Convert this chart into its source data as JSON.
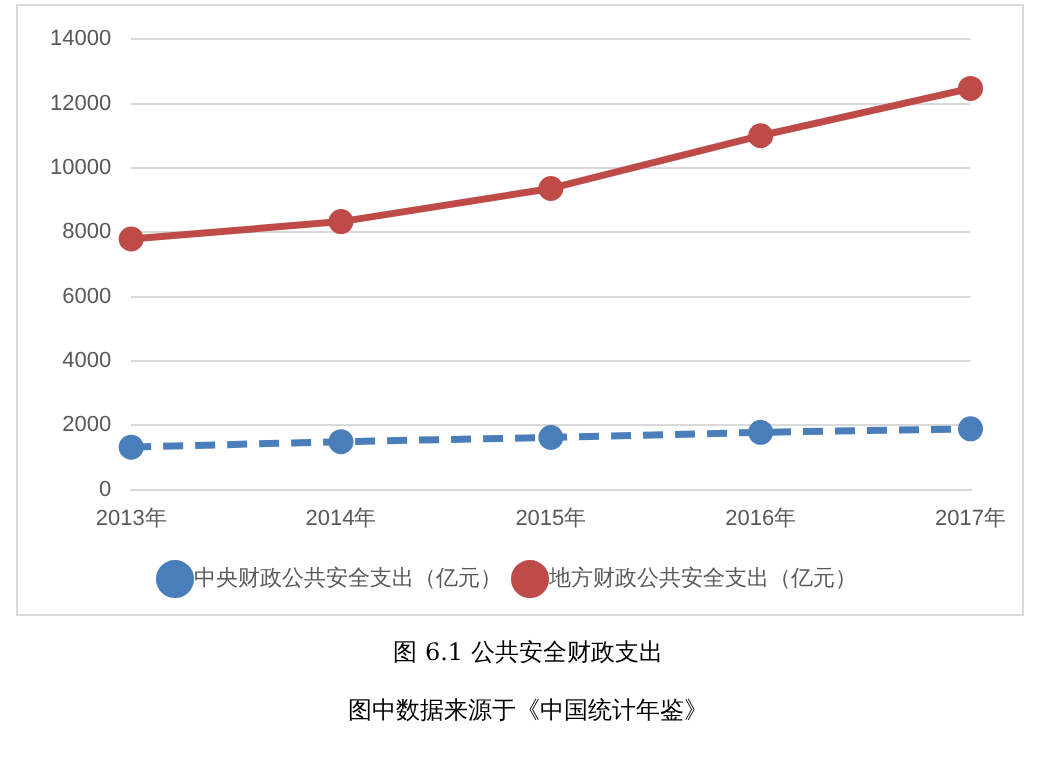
{
  "chart_data": {
    "type": "line",
    "categories": [
      "2013年",
      "2014年",
      "2015年",
      "2016年",
      "2017年"
    ],
    "series": [
      {
        "name": "中央财政公共安全支出（亿元）",
        "color": "#4a7ebb",
        "values": [
          1320,
          1490,
          1620,
          1780,
          1890
        ],
        "line_style": "dashed"
      },
      {
        "name": "地方财政公共安全支出（亿元）",
        "color": "#be4b48",
        "values": [
          7790,
          8330,
          9360,
          11000,
          12470
        ],
        "line_style": "solid"
      }
    ],
    "ylim": [
      0,
      14000
    ],
    "yticks": [
      0,
      2000,
      4000,
      6000,
      8000,
      10000,
      12000,
      14000
    ],
    "grid": "y",
    "legend": "bottom",
    "marker": "circle",
    "annotations": [
      "图 6.1 公共安全财政支出",
      "图中数据来源于《中国统计年鉴》"
    ]
  }
}
